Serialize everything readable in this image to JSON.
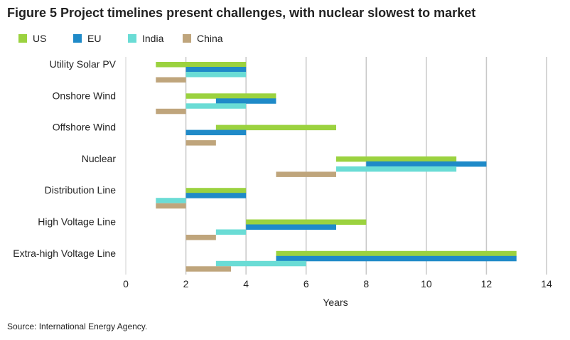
{
  "chart_data": {
    "type": "bar",
    "orientation": "horizontal-range",
    "title": "Figure 5   Project timelines present challenges, with nuclear slowest to market",
    "xlabel": "Years",
    "ylabel": "",
    "xlim": [
      0,
      14
    ],
    "xticks": [
      0,
      2,
      4,
      6,
      8,
      10,
      12,
      14
    ],
    "grid": "vertical",
    "legend": "top-left",
    "categories": [
      "Utility Solar PV",
      "Onshore Wind",
      "Offshore Wind",
      "Nuclear",
      "Distribution Line",
      "High Voltage Line",
      "Extra-high Voltage Line"
    ],
    "series": [
      {
        "name": "US",
        "color": "#9bd23f",
        "ranges": [
          [
            1,
            4
          ],
          [
            2,
            5
          ],
          [
            3,
            7
          ],
          [
            7,
            11
          ],
          [
            2,
            4
          ],
          [
            4,
            8
          ],
          [
            5,
            13
          ]
        ]
      },
      {
        "name": "EU",
        "color": "#1f8ac8",
        "ranges": [
          [
            2,
            4
          ],
          [
            3,
            5
          ],
          [
            2,
            4
          ],
          [
            8,
            12
          ],
          [
            2,
            4
          ],
          [
            4,
            7
          ],
          [
            5,
            13
          ]
        ]
      },
      {
        "name": "India",
        "color": "#6adcd5",
        "ranges": [
          [
            2,
            4
          ],
          [
            2,
            4
          ],
          null,
          [
            7,
            11
          ],
          [
            1,
            2
          ],
          [
            3,
            4
          ],
          [
            3,
            6
          ]
        ]
      },
      {
        "name": "China",
        "color": "#bfa57c",
        "ranges": [
          [
            1,
            2
          ],
          [
            1,
            2
          ],
          [
            2,
            3
          ],
          [
            5,
            7
          ],
          [
            1,
            2
          ],
          [
            2,
            3
          ],
          [
            2,
            3.5
          ]
        ]
      }
    ],
    "source": "Source: International Energy Agency."
  }
}
